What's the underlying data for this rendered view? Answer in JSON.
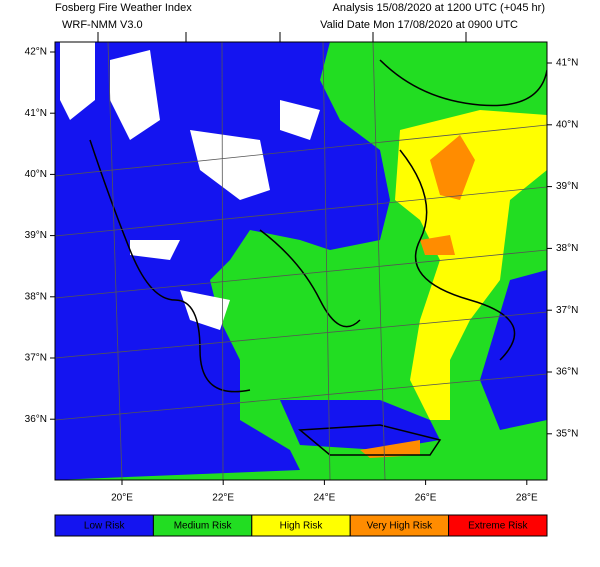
{
  "header": {
    "title": "Fosberg Fire Weather Index",
    "model": "WRF-NMM V3.0",
    "analysis": "Analysis 15/08/2020 at 1200 UTC (+045 hr)",
    "valid": "Valid Date Mon 17/08/2020 at 0900 UTC"
  },
  "map": {
    "left_lat_labels": [
      "42°N",
      "41°N",
      "40°N",
      "39°N",
      "38°N",
      "37°N",
      "36°N"
    ],
    "right_lat_labels": [
      "41°N",
      "40°N",
      "39°N",
      "38°N",
      "37°N",
      "36°N",
      "35°N"
    ],
    "lon_labels": [
      "20°E",
      "22°E",
      "24°E",
      "26°E",
      "28°E"
    ]
  },
  "legend": [
    {
      "label": "Low Risk",
      "color": "#1414f0"
    },
    {
      "label": "Medium Risk",
      "color": "#22dd22"
    },
    {
      "label": "High Risk",
      "color": "#ffff00"
    },
    {
      "label": "Very High Risk",
      "color": "#ff8c00"
    },
    {
      "label": "Extreme Risk",
      "color": "#ff0000"
    }
  ]
}
